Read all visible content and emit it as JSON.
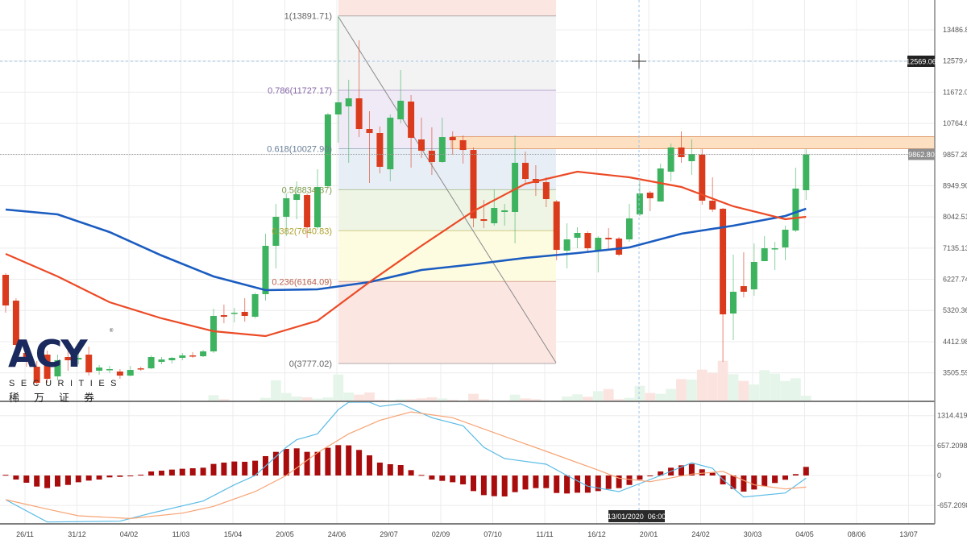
{
  "colors": {
    "up": "#3db35f",
    "down": "#db3b1d",
    "ma_slow": "#1a5cc0",
    "ma_fast": "#ec4a26",
    "macd_hist": "#a80c0c",
    "macd_line": "#5bbbe6",
    "signal_line": "#f7a374",
    "resistance_fill": "#fde0c2",
    "resistance_border": "#e3a57a"
  },
  "logo": {
    "brand": "ACY",
    "subtitle": "SECURITIES",
    "chinese": "稀万证券"
  },
  "price_axis": {
    "labels": [
      "13486.82",
      "12579.43",
      "11672.05",
      "10764.67",
      "9857.28",
      "8949.90",
      "8042.51",
      "7135.13",
      "6227.74",
      "5320.36",
      "4412.98",
      "3505.59"
    ]
  },
  "macd_axis": {
    "labels": [
      "1314.4196",
      "657.20984",
      "0",
      "-657.2098"
    ]
  },
  "time_axis": {
    "labels": [
      "26/11",
      "31/12",
      "04/02",
      "11/03",
      "15/04",
      "20/05",
      "24/06",
      "29/07",
      "02/09",
      "07/10",
      "11/11",
      "16/12",
      "20/01",
      "24/02",
      "30/03",
      "04/05",
      "08/06",
      "13/07"
    ]
  },
  "current_price_tag": "9862.80",
  "crosshair": {
    "price_tag": "12569.06",
    "time_tag": "13/01/2020  06:00"
  },
  "fibonacci": {
    "levels": [
      {
        "ratio": 1,
        "value": 13891.71,
        "label": "1(13891.71)",
        "color": "#666666",
        "fill": "#f3f3f3"
      },
      {
        "ratio": 0.786,
        "value": 11727.17,
        "label": "0.786(11727.17)",
        "color": "#8466a8",
        "fill": "#efeaf6"
      },
      {
        "ratio": 0.618,
        "value": 10027.9,
        "label": "0.618(10027.90)",
        "color": "#667d96",
        "fill": "#e8eef6"
      },
      {
        "ratio": 0.5,
        "value": 8834.37,
        "label": "0.5(8834.37)",
        "color": "#7c9a4c",
        "fill": "#eef5e5"
      },
      {
        "ratio": 0.382,
        "value": 7640.83,
        "label": "0.382(7640.83)",
        "color": "#ada02c",
        "fill": "#fdfbe0"
      },
      {
        "ratio": 0.236,
        "value": 6164.09,
        "label": "0.236(6164.09)",
        "color": "#b8604c",
        "fill": "#fbe6e2"
      },
      {
        "ratio": 0,
        "value": 3777.02,
        "label": "0(3777.02)",
        "color": "#666666",
        "fill": "#fbe6e2"
      }
    ]
  },
  "chart_data": {
    "type": "candlestick",
    "title": "",
    "interval": "weekly",
    "y_range": [
      3100,
      14300
    ],
    "resistance_zone": [
      10027.9,
      10380
    ],
    "candles_ohlc": [
      [
        6358,
        6404,
        5255,
        5466
      ],
      [
        5607,
        5677,
        4036,
        4317
      ],
      [
        4083,
        4388,
        3684,
        3919
      ],
      [
        3684,
        3848,
        3145,
        3215
      ],
      [
        4036,
        4153,
        3215,
        3332
      ],
      [
        3403,
        4036,
        3286,
        3872
      ],
      [
        3966,
        4388,
        3567,
        3872
      ],
      [
        3895,
        4153,
        3755,
        3942
      ],
      [
        4036,
        4270,
        3426,
        3520
      ],
      [
        3567,
        3731,
        3450,
        3661
      ],
      [
        3590,
        3708,
        3497,
        3614
      ],
      [
        3544,
        3614,
        3332,
        3426
      ],
      [
        3426,
        3708,
        3403,
        3590
      ],
      [
        3637,
        3684,
        3567,
        3614
      ],
      [
        3637,
        4013,
        3614,
        3966
      ],
      [
        3825,
        3966,
        3755,
        3895
      ],
      [
        3872,
        3966,
        3778,
        3942
      ],
      [
        3942,
        4083,
        3872,
        4013
      ],
      [
        4013,
        4106,
        3942,
        3989
      ],
      [
        3989,
        4177,
        3966,
        4130
      ],
      [
        4130,
        5373,
        4083,
        5162
      ],
      [
        5185,
        5490,
        4951,
        5138
      ],
      [
        5232,
        5396,
        4974,
        5255
      ],
      [
        5279,
        5677,
        4997,
        5162
      ],
      [
        5138,
        5842,
        5091,
        5795
      ],
      [
        5795,
        7553,
        5607,
        7202
      ],
      [
        7202,
        8421,
        6545,
        8046
      ],
      [
        8046,
        8726,
        7483,
        8585
      ],
      [
        8538,
        9078,
        7976,
        8703
      ],
      [
        8679,
        8726,
        7436,
        7741
      ],
      [
        7741,
        9429,
        7671,
        8914
      ],
      [
        8937,
        11071,
        8914,
        11024
      ],
      [
        11024,
        13890,
        10203,
        11376
      ],
      [
        11259,
        12032,
        9617,
        11493
      ],
      [
        11493,
        13181,
        10367,
        10602
      ],
      [
        10602,
        11118,
        9031,
        10485
      ],
      [
        10485,
        10672,
        9312,
        9500
      ],
      [
        9429,
        11024,
        9078,
        10930
      ],
      [
        10883,
        12314,
        10766,
        11423
      ],
      [
        11399,
        11587,
        9476,
        10344
      ],
      [
        10297,
        10930,
        9758,
        9969
      ],
      [
        9969,
        10649,
        9265,
        9641
      ],
      [
        9641,
        10930,
        9617,
        10367
      ],
      [
        10367,
        10532,
        9852,
        10274
      ],
      [
        10274,
        10414,
        9594,
        9992
      ],
      [
        9992,
        10063,
        7741,
        7999
      ],
      [
        7976,
        8538,
        7718,
        7929
      ],
      [
        7858,
        8843,
        7788,
        8304
      ],
      [
        8187,
        8421,
        7788,
        8234
      ],
      [
        8187,
        10414,
        7272,
        9617
      ],
      [
        9617,
        9945,
        9007,
        9148
      ],
      [
        9148,
        9547,
        8656,
        9031
      ],
      [
        9054,
        9195,
        8327,
        8562
      ],
      [
        8491,
        8538,
        6780,
        7084
      ],
      [
        7061,
        7858,
        6545,
        7389
      ],
      [
        7436,
        7741,
        7131,
        7577
      ],
      [
        7577,
        7624,
        7038,
        7131
      ],
      [
        7061,
        7483,
        6428,
        7436
      ],
      [
        7436,
        7718,
        7084,
        7389
      ],
      [
        7413,
        7460,
        6897,
        6944
      ],
      [
        7389,
        8421,
        7319,
        7999
      ],
      [
        8116,
        9078,
        8069,
        8726
      ],
      [
        8749,
        8796,
        8210,
        8585
      ],
      [
        8491,
        9594,
        8491,
        9453
      ],
      [
        9359,
        10180,
        9078,
        10063
      ],
      [
        10063,
        10532,
        9617,
        9781
      ],
      [
        9664,
        10297,
        9265,
        9875
      ],
      [
        9852,
        10016,
        8398,
        8515
      ],
      [
        8515,
        9195,
        8187,
        8257
      ],
      [
        8280,
        8304,
        3825,
        5208
      ],
      [
        5232,
        6944,
        4458,
        5865
      ],
      [
        6029,
        7014,
        5701,
        5865
      ],
      [
        5935,
        7272,
        5748,
        6733
      ],
      [
        6756,
        7483,
        6756,
        7131
      ],
      [
        7108,
        7319,
        6498,
        7131
      ],
      [
        7155,
        7788,
        6780,
        7671
      ],
      [
        7647,
        9476,
        7600,
        8867
      ],
      [
        8820,
        10016,
        8538,
        9862.8
      ]
    ],
    "volume_relative": [
      [
        20,
        20
      ],
      [
        21,
        5
      ],
      [
        25,
        10
      ],
      [
        26,
        75
      ],
      [
        27,
        28
      ],
      [
        28,
        15
      ],
      [
        29,
        12
      ],
      [
        30,
        7
      ],
      [
        31,
        12
      ],
      [
        32,
        97
      ],
      [
        33,
        30
      ],
      [
        34,
        22
      ],
      [
        35,
        30
      ],
      [
        36,
        3
      ],
      [
        38,
        5
      ],
      [
        39,
        5
      ],
      [
        40,
        8
      ],
      [
        41,
        12
      ],
      [
        42,
        8
      ],
      [
        43,
        3
      ],
      [
        45,
        25
      ],
      [
        46,
        5
      ],
      [
        49,
        22
      ],
      [
        50,
        8
      ],
      [
        51,
        5
      ],
      [
        54,
        15
      ],
      [
        55,
        23
      ],
      [
        56,
        14
      ],
      [
        57,
        35
      ],
      [
        58,
        43
      ],
      [
        59,
        5
      ],
      [
        60,
        10
      ],
      [
        61,
        55
      ],
      [
        62,
        28
      ],
      [
        63,
        25
      ],
      [
        64,
        43
      ],
      [
        65,
        80
      ],
      [
        66,
        78
      ],
      [
        67,
        115
      ],
      [
        68,
        103
      ],
      [
        69,
        148
      ],
      [
        70,
        98
      ],
      [
        71,
        73
      ],
      [
        72,
        60
      ],
      [
        73,
        113
      ],
      [
        74,
        100
      ],
      [
        75,
        73
      ],
      [
        76,
        83
      ],
      [
        77,
        18
      ]
    ],
    "ma_slow": [
      [
        0,
        8257
      ],
      [
        5,
        8116
      ],
      [
        10,
        7600
      ],
      [
        15,
        6920
      ],
      [
        20,
        6311
      ],
      [
        25,
        5912
      ],
      [
        30,
        5935
      ],
      [
        35,
        6147
      ],
      [
        40,
        6498
      ],
      [
        45,
        6662
      ],
      [
        50,
        6850
      ],
      [
        55,
        6991
      ],
      [
        60,
        7155
      ],
      [
        65,
        7553
      ],
      [
        70,
        7788
      ],
      [
        75,
        8069
      ],
      [
        77,
        8280
      ]
    ],
    "ma_fast": [
      [
        0,
        6967
      ],
      [
        5,
        6311
      ],
      [
        10,
        5560
      ],
      [
        15,
        5091
      ],
      [
        20,
        4716
      ],
      [
        25,
        4575
      ],
      [
        30,
        5021
      ],
      [
        35,
        6147
      ],
      [
        40,
        7202
      ],
      [
        45,
        8210
      ],
      [
        50,
        9007
      ],
      [
        55,
        9359
      ],
      [
        60,
        9195
      ],
      [
        65,
        8914
      ],
      [
        70,
        8351
      ],
      [
        75,
        7976
      ],
      [
        77,
        8046
      ]
    ],
    "macd": {
      "y_range": [
        -900,
        1550
      ],
      "histogram": [
        15,
        -89,
        -159,
        -242,
        -277,
        -242,
        -207,
        -148,
        -112,
        -89,
        -41,
        -30,
        -6,
        18,
        89,
        106,
        130,
        148,
        159,
        171,
        254,
        283,
        307,
        301,
        325,
        425,
        519,
        584,
        596,
        519,
        519,
        608,
        667,
        661,
        561,
        443,
        283,
        248,
        230,
        118,
        12,
        -89,
        -118,
        -148,
        -195,
        -342,
        -431,
        -454,
        -460,
        -366,
        -307,
        -277,
        -277,
        -384,
        -395,
        -378,
        -378,
        -342,
        -295,
        -277,
        -207,
        -89,
        -12,
        89,
        171,
        224,
        254,
        136,
        59,
        -195,
        -295,
        -354,
        -307,
        -236,
        -165,
        -94,
        30,
        189
      ],
      "macd_line": [
        [
          0,
          -531
        ],
        [
          4,
          -1020
        ],
        [
          11,
          -1003
        ],
        [
          14,
          -826
        ],
        [
          19,
          -560
        ],
        [
          22,
          -206
        ],
        [
          24,
          0
        ],
        [
          27,
          620
        ],
        [
          28,
          785
        ],
        [
          30,
          915
        ],
        [
          32,
          1446
        ],
        [
          33,
          1610
        ],
        [
          35,
          1610
        ],
        [
          36,
          1516
        ],
        [
          38,
          1575
        ],
        [
          41,
          1268
        ],
        [
          44,
          1092
        ],
        [
          46,
          620
        ],
        [
          48,
          372
        ],
        [
          52,
          248
        ],
        [
          54,
          0
        ],
        [
          56,
          -236
        ],
        [
          59,
          -354
        ],
        [
          63,
          0
        ],
        [
          66,
          277
        ],
        [
          68,
          159
        ],
        [
          69,
          -89
        ],
        [
          71,
          -472
        ],
        [
          75,
          -384
        ],
        [
          77,
          -59
        ]
      ],
      "signal_line": [
        [
          0,
          -531
        ],
        [
          4,
          -737
        ],
        [
          7,
          -885
        ],
        [
          12,
          -944
        ],
        [
          17,
          -826
        ],
        [
          20,
          -678
        ],
        [
          24,
          -354
        ],
        [
          27,
          0
        ],
        [
          30,
          501
        ],
        [
          33,
          915
        ],
        [
          36,
          1210
        ],
        [
          39,
          1395
        ],
        [
          43,
          1268
        ],
        [
          48,
          856
        ],
        [
          52,
          531
        ],
        [
          57,
          118
        ],
        [
          59,
          -59
        ],
        [
          62,
          -136
        ],
        [
          66,
          30
        ],
        [
          69,
          89
        ],
        [
          72,
          -206
        ],
        [
          75,
          -295
        ],
        [
          77,
          -254
        ]
      ]
    }
  }
}
